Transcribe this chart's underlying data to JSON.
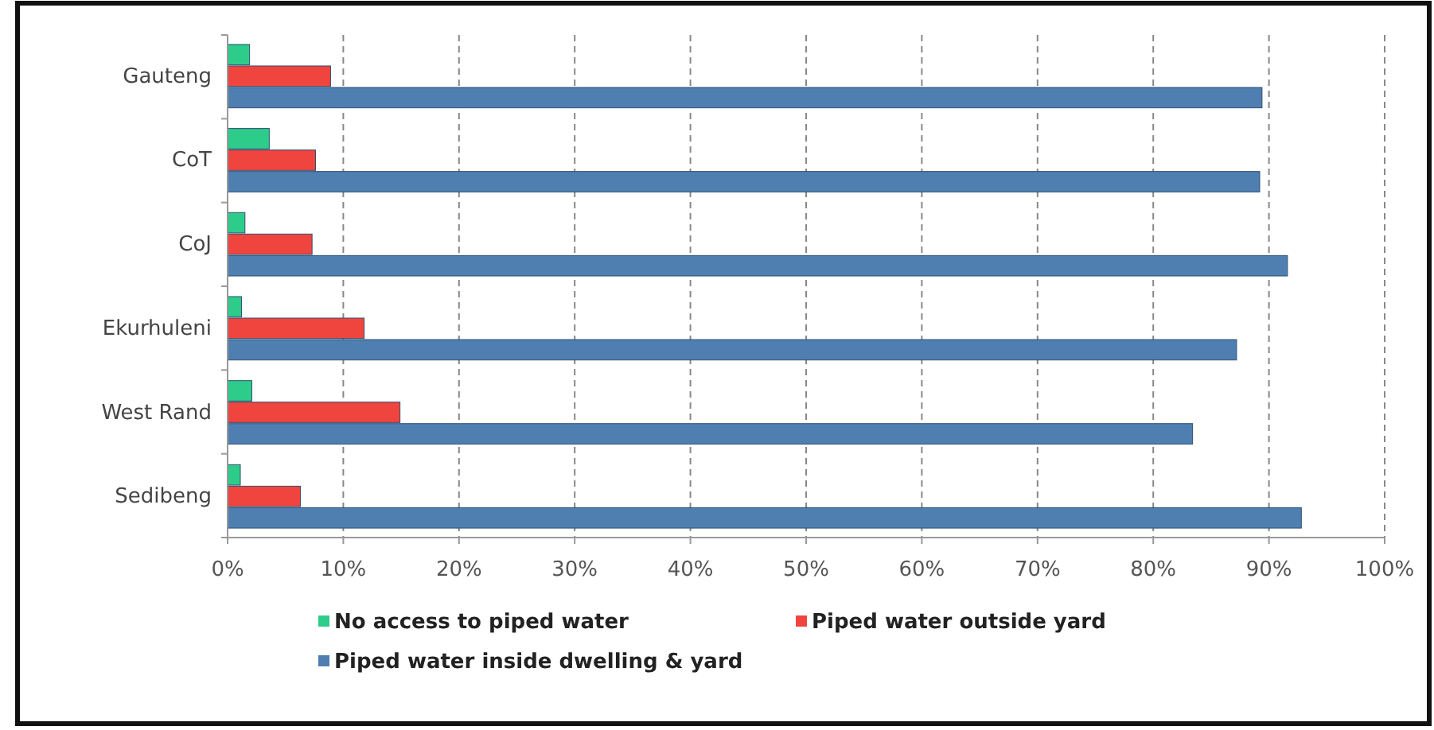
{
  "chart_data": {
    "type": "bar",
    "orientation": "horizontal",
    "categories": [
      "Gauteng",
      "CoT",
      "CoJ",
      "Ekurhuleni",
      "West Rand",
      "Sedibeng"
    ],
    "series": [
      {
        "name": "No access to piped water",
        "color": "#2ecc8a",
        "values": [
          1.9,
          3.6,
          1.5,
          1.2,
          2.1,
          1.1
        ]
      },
      {
        "name": "Piped water outside yard",
        "color": "#f0443e",
        "values": [
          8.9,
          7.6,
          7.3,
          11.8,
          14.9,
          6.3
        ]
      },
      {
        "name": "Piped water inside dwelling & yard",
        "color": "#4f7fb0",
        "values": [
          89.4,
          89.2,
          91.6,
          87.2,
          83.4,
          92.8
        ]
      }
    ],
    "xlim": [
      0,
      100
    ],
    "xticks": [
      {
        "value": 0,
        "label": "0%"
      },
      {
        "value": 10,
        "label": "10%"
      },
      {
        "value": 20,
        "label": "20%"
      },
      {
        "value": 30,
        "label": "30%"
      },
      {
        "value": 40,
        "label": "40%"
      },
      {
        "value": 50,
        "label": "50%"
      },
      {
        "value": 60,
        "label": "60%"
      },
      {
        "value": 70,
        "label": "70%"
      },
      {
        "value": 80,
        "label": "80%"
      },
      {
        "value": 90,
        "label": "90%"
      },
      {
        "value": 100,
        "label": "100%"
      }
    ],
    "grid": "x",
    "legend": "bottom"
  }
}
